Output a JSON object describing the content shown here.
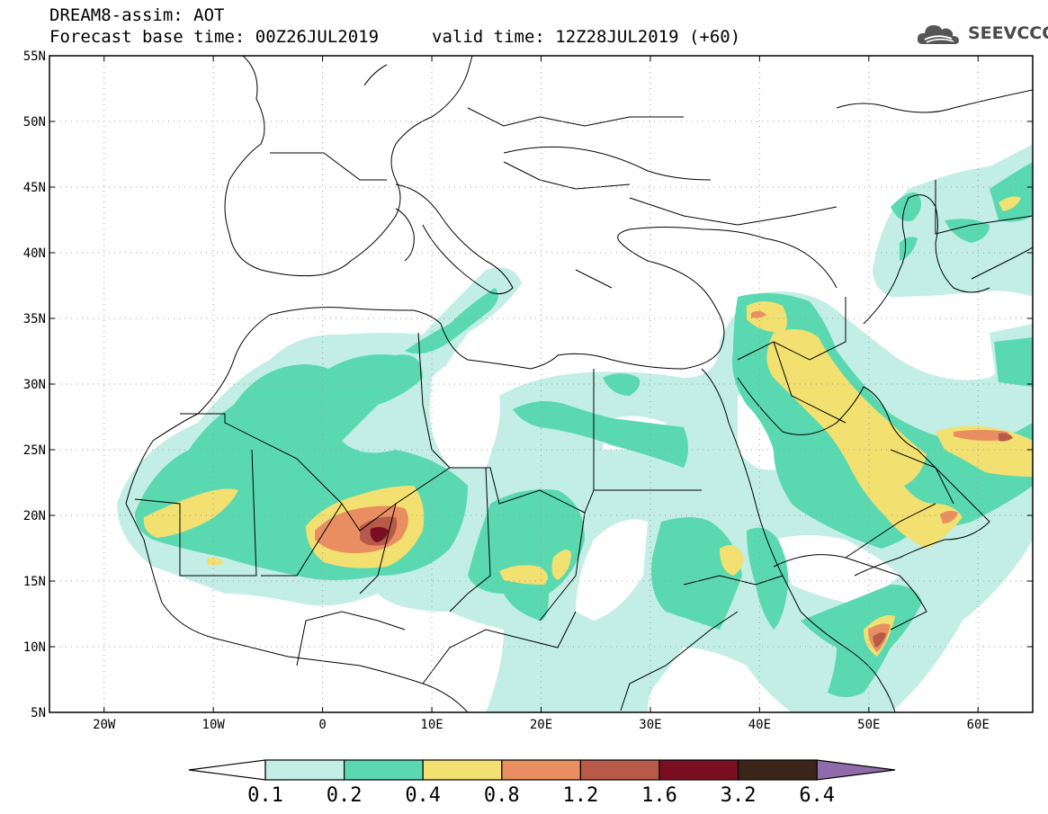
{
  "header": {
    "title": "DREAM8-assim: AOT",
    "base_time": "Forecast base time: 00Z26JUL2019",
    "valid_time": "valid time: 12Z28JUL2019 (+60)"
  },
  "logo": {
    "text": "SEEVCCC",
    "icon": "cloud-icon"
  },
  "map": {
    "lon_range": [
      -25,
      65
    ],
    "lat_range": [
      5,
      55
    ],
    "lat_ticks": [
      {
        "value": 55,
        "label": "55N"
      },
      {
        "value": 50,
        "label": "50N"
      },
      {
        "value": 45,
        "label": "45N"
      },
      {
        "value": 40,
        "label": "40N"
      },
      {
        "value": 35,
        "label": "35N"
      },
      {
        "value": 30,
        "label": "30N"
      },
      {
        "value": 25,
        "label": "25N"
      },
      {
        "value": 20,
        "label": "20N"
      },
      {
        "value": 15,
        "label": "15N"
      },
      {
        "value": 10,
        "label": "10N"
      },
      {
        "value": 5,
        "label": "5N"
      }
    ],
    "lon_ticks": [
      {
        "value": -20,
        "label": "20W"
      },
      {
        "value": -10,
        "label": "10W"
      },
      {
        "value": 0,
        "label": "0"
      },
      {
        "value": 10,
        "label": "10E"
      },
      {
        "value": 20,
        "label": "20E"
      },
      {
        "value": 30,
        "label": "30E"
      },
      {
        "value": 40,
        "label": "40E"
      },
      {
        "value": 50,
        "label": "50E"
      },
      {
        "value": 60,
        "label": "60E"
      }
    ]
  },
  "colorbar": {
    "labels": [
      "0.1",
      "0.2",
      "0.4",
      "0.8",
      "1.2",
      "1.6",
      "3.2",
      "6.4"
    ],
    "colors": [
      "#c2eee6",
      "#5ad9b0",
      "#f2e070",
      "#e98e60",
      "#b75a48",
      "#7a0f22",
      "#3a2518",
      "#8f6bab"
    ],
    "under_color": "#ffffff"
  }
}
